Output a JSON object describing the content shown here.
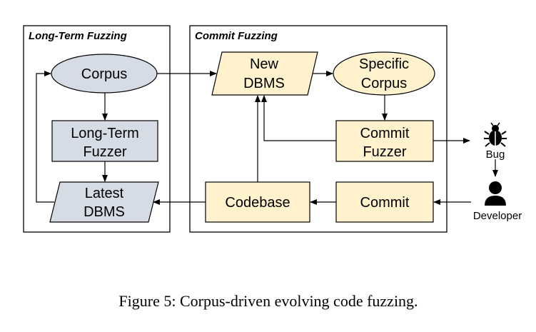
{
  "groups": {
    "long_term": {
      "title": "Long-Term Fuzzing"
    },
    "commit": {
      "title": "Commit Fuzzing"
    }
  },
  "nodes": {
    "corpus": {
      "label": "Corpus"
    },
    "long_term_fuzzer": {
      "line1": "Long-Term",
      "line2": "Fuzzer"
    },
    "latest_dbms": {
      "line1": "Latest",
      "line2": "DBMS"
    },
    "new_dbms": {
      "line1": "New",
      "line2": "DBMS"
    },
    "specific_corpus": {
      "line1": "Specific",
      "line2": "Corpus"
    },
    "commit_fuzzer": {
      "line1": "Commit",
      "line2": "Fuzzer"
    },
    "codebase": {
      "label": "Codebase"
    },
    "commit": {
      "label": "Commit"
    }
  },
  "actors": {
    "bug": {
      "label": "Bug"
    },
    "developer": {
      "label": "Developer"
    }
  },
  "caption": "Figure 5: Corpus-driven evolving code fuzzing.",
  "colors": {
    "blue_fill": "#d6dce5",
    "yellow_fill": "#fff2cc",
    "stroke": "#000000"
  },
  "icons": [
    "bug-icon",
    "developer-icon"
  ]
}
